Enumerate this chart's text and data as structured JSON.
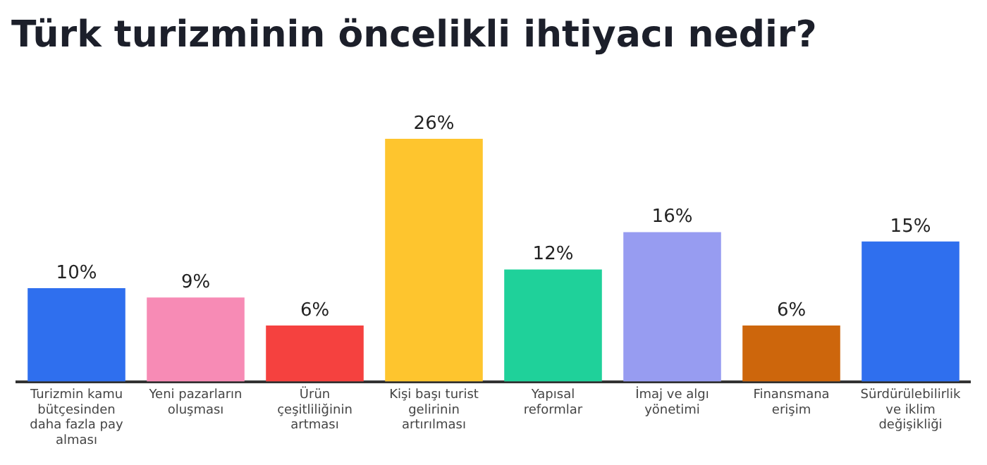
{
  "chart_data": {
    "type": "bar",
    "title": "Türk turizminin öncelikli ihtiyacı nedir?",
    "categories": [
      "Turizmin kamu bütçesinden daha fazla pay alması",
      "Yeni pazarların oluşması",
      "Ürün çeşitliliğinin artması",
      "Kişi başı turist gelirinin artırılması",
      "Yapısal reformlar",
      "İmaj ve algı yönetimi",
      "Finansmana erişim",
      "Sürdürülebilirlik ve iklim değişikliği"
    ],
    "values": [
      10,
      9,
      6,
      26,
      12,
      16,
      6,
      15
    ],
    "value_labels": [
      "10%",
      "9%",
      "6%",
      "26%",
      "12%",
      "16%",
      "6%",
      "15%"
    ],
    "colors": [
      "#2f6fee",
      "#f78bb5",
      "#f5413f",
      "#fec52e",
      "#1fd19a",
      "#979cf1",
      "#cd660c",
      "#2f6fee"
    ],
    "grid": false,
    "legend": false
  }
}
